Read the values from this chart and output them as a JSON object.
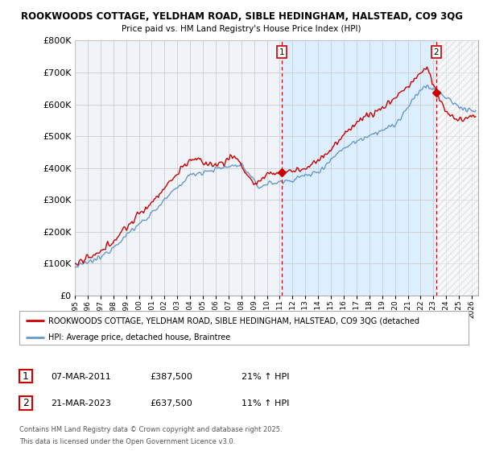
{
  "title1": "ROOKWOODS COTTAGE, YELDHAM ROAD, SIBLE HEDINGHAM, HALSTEAD, CO9 3QG",
  "title2": "Price paid vs. HM Land Registry's House Price Index (HPI)",
  "ylim": [
    0,
    800000
  ],
  "yticks": [
    0,
    100000,
    200000,
    300000,
    400000,
    500000,
    600000,
    700000,
    800000
  ],
  "ytick_labels": [
    "£0",
    "£100K",
    "£200K",
    "£300K",
    "£400K",
    "£500K",
    "£600K",
    "£700K",
    "£800K"
  ],
  "xlim_start": 1995.0,
  "xlim_end": 2026.5,
  "red_color": "#cc0000",
  "blue_color": "#6699cc",
  "grid_color": "#cccccc",
  "bg_color": "#ffffff",
  "plot_bg_color": "#f0f4f8",
  "shade_color": "#ddeeff",
  "point1_x": 2011.18,
  "point1_y": 387500,
  "point2_x": 2023.22,
  "point2_y": 637500,
  "point1_date": "07-MAR-2011",
  "point1_price": "£387,500",
  "point1_hpi": "21% ↑ HPI",
  "point2_date": "21-MAR-2023",
  "point2_price": "£637,500",
  "point2_hpi": "11% ↑ HPI",
  "legend_line1": "ROOKWOODS COTTAGE, YELDHAM ROAD, SIBLE HEDINGHAM, HALSTEAD, CO9 3QG (detached",
  "legend_line2": "HPI: Average price, detached house, Braintree",
  "footer1": "Contains HM Land Registry data © Crown copyright and database right 2025.",
  "footer2": "This data is licensed under the Open Government Licence v3.0."
}
